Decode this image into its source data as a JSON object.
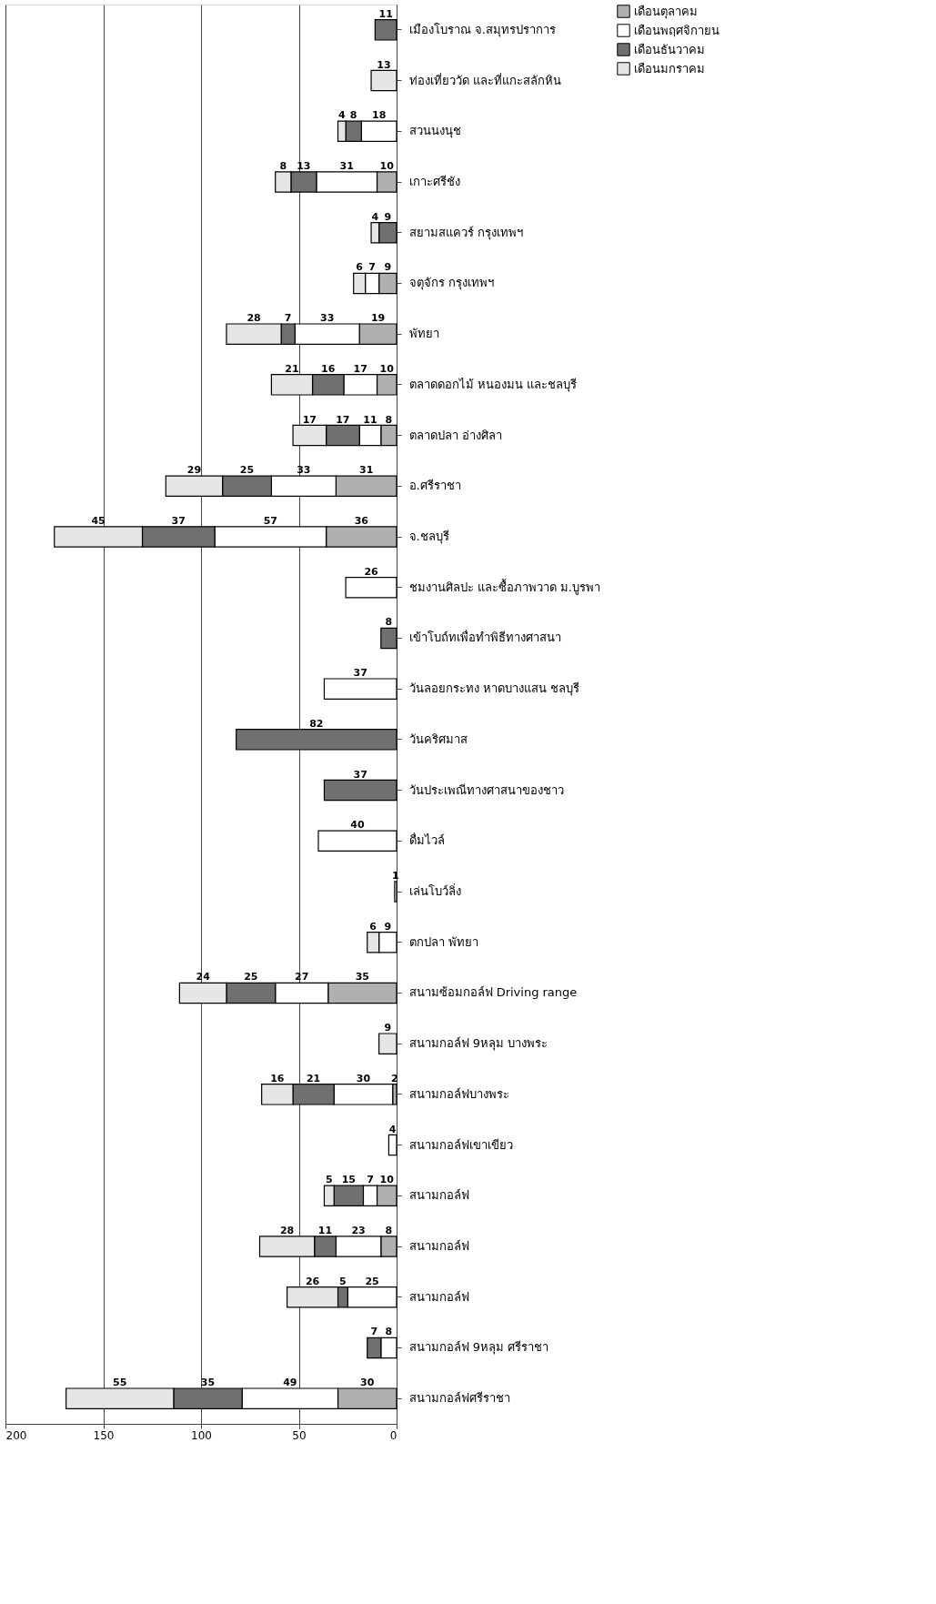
{
  "chart_data": {
    "type": "bar",
    "orientation": "horizontal",
    "stacked": true,
    "data_labels": true,
    "grid": "x",
    "legend": "right",
    "categories": [
      "เมืองโบราณ จ.สมุทรปราการ",
      "ท่องเที่ยววัด และที่แกะสลักหิน",
      "สวนนงนุช",
      "เกาะศรีชัง",
      "สยามสแควร์ กรุงเทพฯ",
      "จตุจักร กรุงเทพฯ",
      "พัทยา",
      "ตลาดดอกไม้ หนองมน และชลบุรี",
      "ตลาดปลา อ่างศิลา",
      "อ.ศรีราชา",
      "จ.ชลบุรี",
      "ชมงานศิลปะ และซื้อภาพวาด ม.บูรพา",
      "เข้าโบถ์ทเพื่อทำพิธีทางศาสนา",
      "วันลอยกระทง หาดบางแสน ชลบุรี",
      "วันคริศมาส",
      "วันประเพณีทางศาสนาของชาว",
      "ดื่มไวล์",
      "เล่นโบว์ลิ่ง",
      "ตกปลา พัทยา",
      "สนามซ้อมกอล์ฟ Driving range",
      "สนามกอล์ฟ 9หลุม บางพระ",
      "สนามกอล์ฟบางพระ",
      "สนามกอล์ฟเขาเขียว",
      "สนามกอล์ฟ",
      "สนามกอล์ฟ",
      "สนามกอล์ฟ",
      "สนามกอล์ฟ 9หลุม ศรีราชา",
      "สนามกอล์ฟศรีราชา"
    ],
    "xlim": [
      200,
      0
    ],
    "xticks": [
      0,
      50,
      100,
      150,
      200
    ],
    "series": [
      {
        "name": "เดือนตุลาคม",
        "color": "#b0b0b0",
        "values": [
          null,
          null,
          null,
          10,
          null,
          9,
          19,
          10,
          8,
          31,
          36,
          null,
          null,
          null,
          null,
          null,
          null,
          null,
          null,
          35,
          null,
          2,
          null,
          10,
          8,
          null,
          null,
          30
        ]
      },
      {
        "name": "เดือนพฤศจิกายน",
        "color": "#ffffff",
        "values": [
          null,
          null,
          18,
          31,
          null,
          7,
          33,
          17,
          11,
          33,
          57,
          26,
          null,
          37,
          null,
          null,
          40,
          1,
          9,
          27,
          null,
          30,
          4,
          7,
          23,
          25,
          8,
          49
        ]
      },
      {
        "name": "เดือนธันวาคม",
        "color": "#707070",
        "values": [
          11,
          null,
          8,
          13,
          9,
          null,
          7,
          16,
          17,
          25,
          37,
          null,
          8,
          null,
          82,
          37,
          null,
          null,
          null,
          25,
          null,
          21,
          null,
          15,
          11,
          5,
          7,
          35
        ]
      },
      {
        "name": "เดือนมกราคม",
        "color": "#e6e6e6",
        "values": [
          null,
          13,
          4,
          8,
          4,
          6,
          28,
          21,
          17,
          29,
          45,
          null,
          null,
          null,
          null,
          null,
          null,
          null,
          6,
          24,
          9,
          16,
          null,
          5,
          28,
          26,
          null,
          55
        ]
      }
    ]
  }
}
